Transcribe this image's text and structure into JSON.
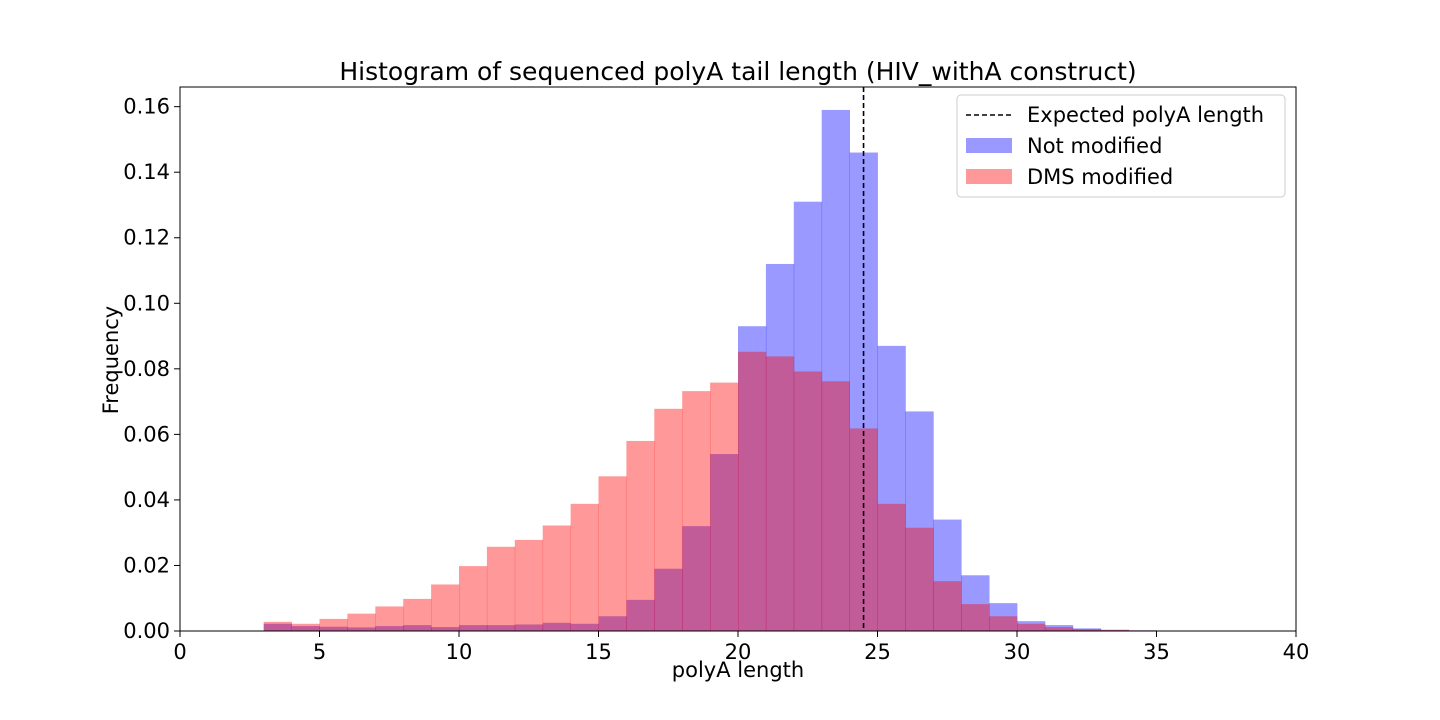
{
  "chart_data": {
    "type": "bar",
    "title": "Histogram of sequenced polyA tail length (HIV_withA construct)",
    "xlabel": "polyA length",
    "ylabel": "Frequency",
    "xlim": [
      0,
      40
    ],
    "ylim": [
      0,
      0.166
    ],
    "xticks": [
      0,
      5,
      10,
      15,
      20,
      25,
      30,
      35,
      40
    ],
    "xtick_labels": [
      "0",
      "5",
      "10",
      "15",
      "20",
      "25",
      "30",
      "35",
      "40"
    ],
    "yticks": [
      0,
      0.02,
      0.04,
      0.06,
      0.08,
      0.1,
      0.12,
      0.14,
      0.16
    ],
    "ytick_labels": [
      "0.00",
      "0.02",
      "0.04",
      "0.06",
      "0.08",
      "0.10",
      "0.12",
      "0.14",
      "0.16"
    ],
    "grid": false,
    "legend_position": "top-right",
    "bin_edges": [
      3,
      4,
      5,
      6,
      7,
      8,
      9,
      10,
      11,
      12,
      13,
      14,
      15,
      16,
      17,
      18,
      19,
      20,
      21,
      22,
      23,
      24,
      25,
      26,
      27,
      28,
      29,
      30,
      31,
      32,
      33,
      34,
      35
    ],
    "series": [
      {
        "name": "Not modified",
        "color": "#0000ff",
        "alpha": 0.4,
        "values": [
          0.0022,
          0.0015,
          0.0013,
          0.0011,
          0.0015,
          0.0018,
          0.0012,
          0.0018,
          0.0018,
          0.002,
          0.0025,
          0.0022,
          0.0045,
          0.0095,
          0.019,
          0.032,
          0.054,
          0.093,
          0.112,
          0.131,
          0.159,
          0.146,
          0.087,
          0.067,
          0.034,
          0.017,
          0.0085,
          0.003,
          0.0018,
          0.0008,
          0.0004,
          0.0002
        ]
      },
      {
        "name": "DMS modified",
        "color": "#ff0000",
        "alpha": 0.4,
        "values": [
          0.0028,
          0.0022,
          0.0037,
          0.0053,
          0.0075,
          0.0098,
          0.0142,
          0.0198,
          0.0257,
          0.0278,
          0.0322,
          0.0388,
          0.0472,
          0.058,
          0.0678,
          0.0732,
          0.0758,
          0.0852,
          0.0838,
          0.0792,
          0.0762,
          0.0618,
          0.0388,
          0.0315,
          0.0152,
          0.0082,
          0.0045,
          0.0022,
          0.0012,
          0.0006,
          0.0003,
          0.0002
        ]
      }
    ],
    "reference_lines": [
      {
        "name": "Expected polyA length",
        "x": 24.5,
        "color": "#000000",
        "style": "dashed"
      }
    ]
  }
}
